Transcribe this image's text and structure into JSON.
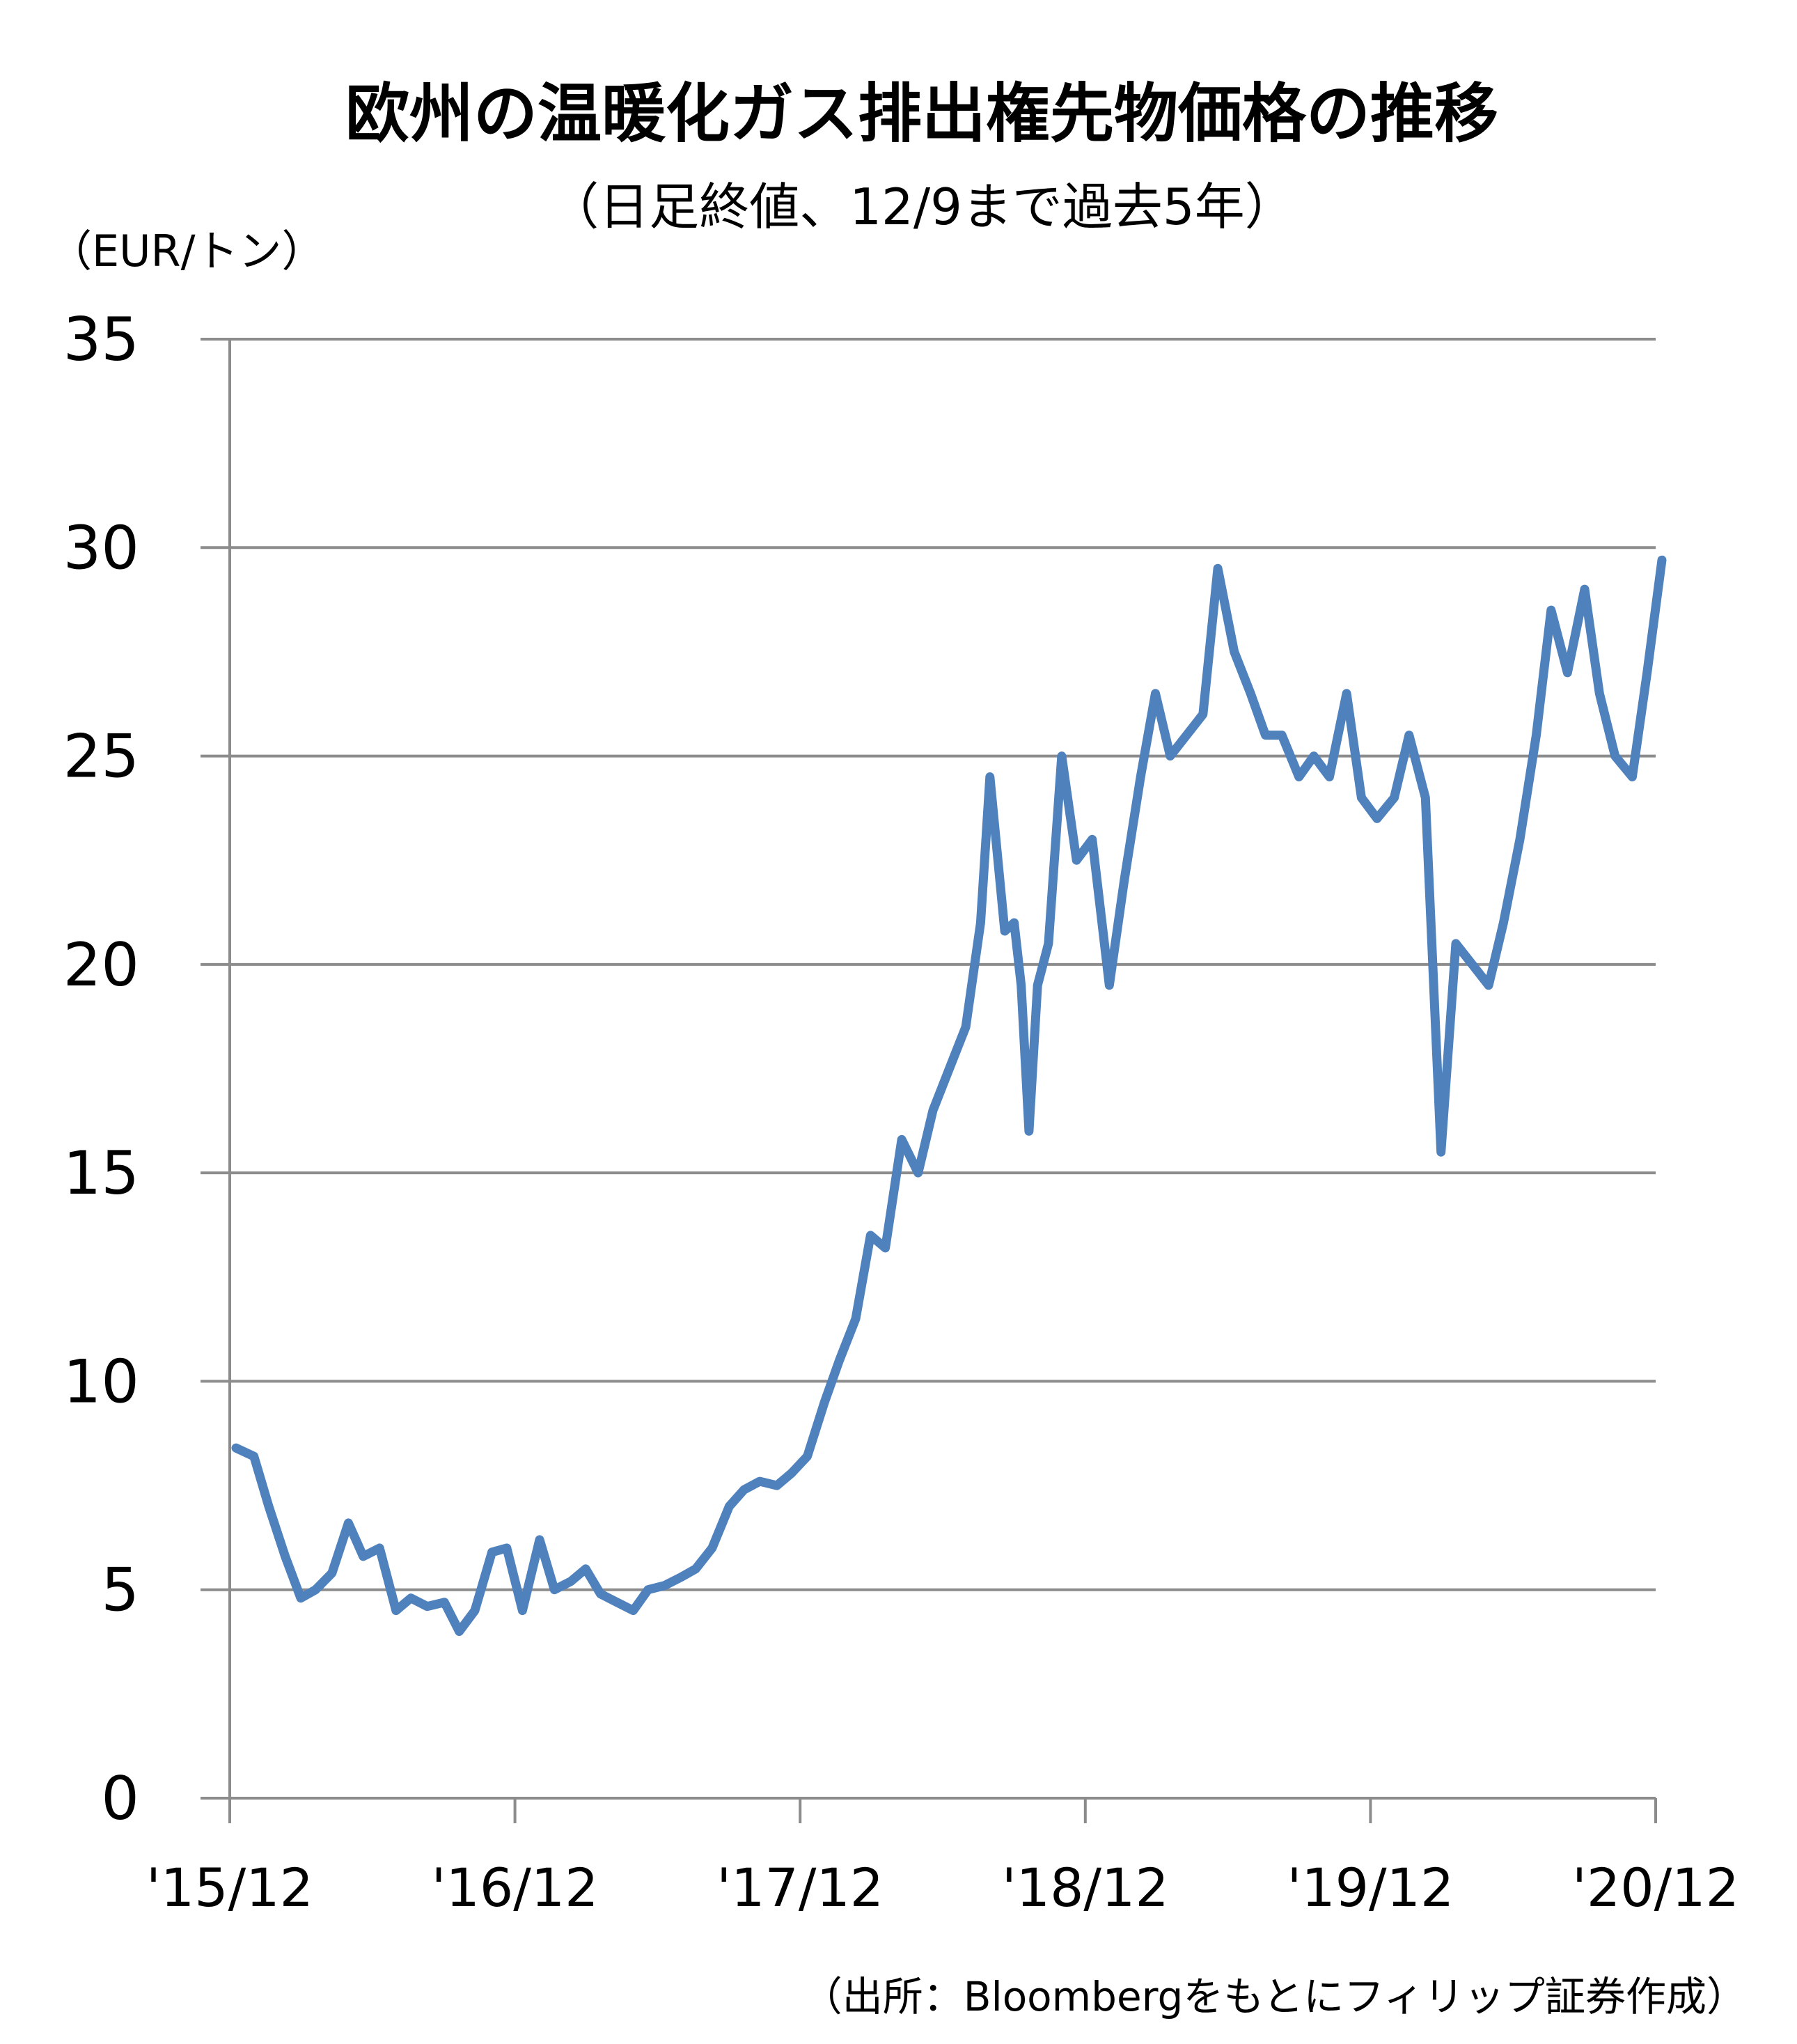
{
  "chart_data": {
    "type": "line",
    "title": "欧州の温暖化ガス排出権先物価格の推移",
    "subtitle": "（日足終値、12/9まで過去5年）",
    "ylabel": "（EUR/トン）",
    "xlabel": "",
    "source": "（出所：Bloombergをもとにフィリップ証券作成）",
    "ylim": [
      0,
      35
    ],
    "yticks": [
      "0",
      "5",
      "10",
      "15",
      "20",
      "25",
      "30",
      "35"
    ],
    "xlim": [
      "2015-12",
      "2020-12"
    ],
    "xticks": [
      "'15/12",
      "'16/12",
      "'17/12",
      "'18/12",
      "'19/12",
      "'20/12"
    ],
    "grid": true,
    "legend": "none",
    "line_color": "#4f81bd",
    "series": [
      {
        "x": [
          "2015-12-09",
          "2016-01-01",
          "2016-01-20",
          "2016-02-10",
          "2016-03-01",
          "2016-03-20",
          "2016-04-10",
          "2016-05-01",
          "2016-05-20",
          "2016-06-10",
          "2016-07-01",
          "2016-07-20",
          "2016-08-10",
          "2016-09-01",
          "2016-09-20",
          "2016-10-10",
          "2016-11-01",
          "2016-11-20",
          "2016-12-10",
          "2017-01-01",
          "2017-01-20",
          "2017-02-10",
          "2017-03-01",
          "2017-03-20",
          "2017-04-10",
          "2017-05-01",
          "2017-05-20",
          "2017-06-10",
          "2017-07-01",
          "2017-07-20",
          "2017-08-10",
          "2017-09-01",
          "2017-09-20",
          "2017-10-10",
          "2017-11-01",
          "2017-11-20",
          "2017-12-10",
          "2018-01-01",
          "2018-01-20",
          "2018-02-10",
          "2018-03-01",
          "2018-03-20",
          "2018-04-10",
          "2018-05-01",
          "2018-05-20",
          "2018-06-10",
          "2018-07-01",
          "2018-07-20",
          "2018-08-01",
          "2018-08-20",
          "2018-09-01",
          "2018-09-10",
          "2018-09-20",
          "2018-10-01",
          "2018-10-15",
          "2018-11-01",
          "2018-11-20",
          "2018-12-10",
          "2019-01-01",
          "2019-01-20",
          "2019-02-10",
          "2019-03-01",
          "2019-03-20",
          "2019-04-10",
          "2019-05-01",
          "2019-05-20",
          "2019-06-10",
          "2019-07-01",
          "2019-07-20",
          "2019-08-10",
          "2019-09-01",
          "2019-09-20",
          "2019-10-10",
          "2019-11-01",
          "2019-11-20",
          "2019-12-10",
          "2020-01-01",
          "2020-01-20",
          "2020-02-10",
          "2020-03-01",
          "2020-03-20",
          "2020-04-10",
          "2020-05-01",
          "2020-05-20",
          "2020-06-10",
          "2020-07-01",
          "2020-07-20",
          "2020-08-10",
          "2020-09-01",
          "2020-09-20",
          "2020-10-10",
          "2020-11-01",
          "2020-11-20",
          "2020-12-09"
        ],
        "values": [
          8.4,
          8.2,
          7.0,
          5.8,
          4.8,
          5.0,
          5.4,
          6.6,
          5.8,
          6.0,
          4.5,
          4.8,
          4.6,
          4.7,
          4.0,
          4.5,
          5.9,
          6.0,
          4.5,
          6.2,
          5.0,
          5.2,
          5.5,
          4.9,
          4.7,
          4.5,
          5.0,
          5.1,
          5.3,
          5.5,
          6.0,
          7.0,
          7.4,
          7.6,
          7.5,
          7.8,
          8.2,
          9.5,
          10.5,
          11.5,
          13.5,
          13.2,
          15.8,
          15.0,
          16.5,
          17.5,
          18.5,
          21.0,
          24.5,
          20.8,
          21.0,
          19.5,
          16.0,
          19.5,
          20.5,
          25.0,
          22.5,
          23.0,
          19.5,
          22.0,
          24.5,
          26.5,
          25.0,
          25.5,
          26.0,
          29.5,
          27.5,
          26.5,
          25.5,
          25.5,
          24.5,
          25.0,
          24.5,
          26.5,
          24.0,
          23.5,
          24.0,
          25.5,
          24.0,
          15.5,
          20.5,
          20.0,
          19.5,
          21.0,
          23.0,
          25.5,
          28.5,
          27.0,
          29.0,
          26.5,
          25.0,
          24.5,
          27.0,
          29.7
        ]
      }
    ]
  }
}
